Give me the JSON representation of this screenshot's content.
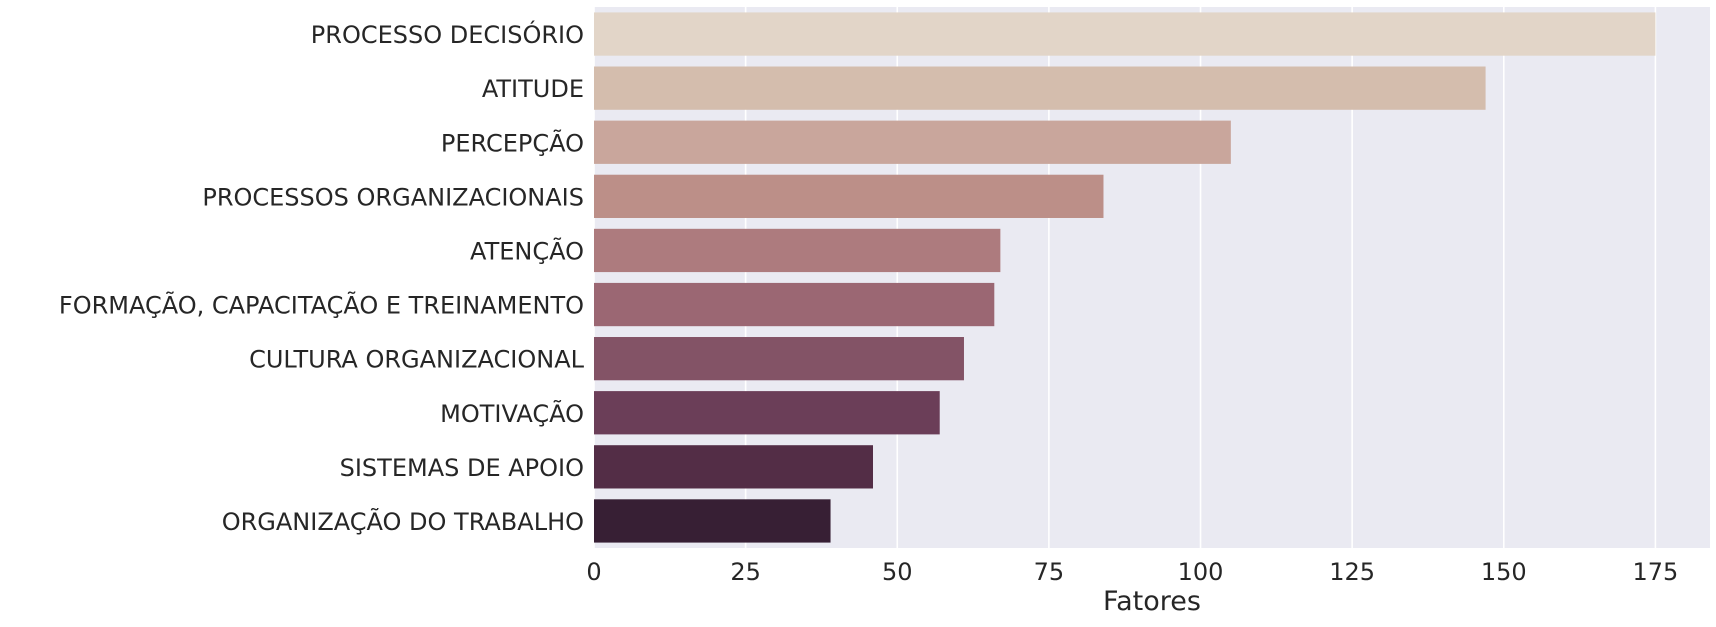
{
  "chart_data": {
    "type": "bar",
    "orientation": "horizontal",
    "categories": [
      "PROCESSO DECISÓRIO",
      "ATITUDE",
      "PERCEPÇÃO",
      "PROCESSOS ORGANIZACIONAIS",
      "ATENÇÃO",
      "FORMAÇÃO, CAPACITAÇÃO E TREINAMENTO",
      "CULTURA ORGANIZACIONAL",
      "MOTIVAÇÃO",
      "SISTEMAS DE APOIO",
      "ORGANIZAÇÃO DO TRABALHO"
    ],
    "values": [
      175,
      147,
      105,
      84,
      67,
      66,
      61,
      57,
      46,
      39
    ],
    "colors": [
      "#e2d5c8",
      "#d4bdad",
      "#c9a69c",
      "#bc8f88",
      "#ad7b7e",
      "#9b6773",
      "#835366",
      "#6b3e58",
      "#532d46",
      "#371f34"
    ],
    "xlabel": "Fatores",
    "ylabel": "",
    "title": "",
    "xlim": [
      0,
      184
    ],
    "xticks": [
      0,
      25,
      50,
      75,
      100,
      125,
      150,
      175
    ],
    "grid": true,
    "background": "#eaeaf2",
    "grid_color": "#ffffff"
  }
}
